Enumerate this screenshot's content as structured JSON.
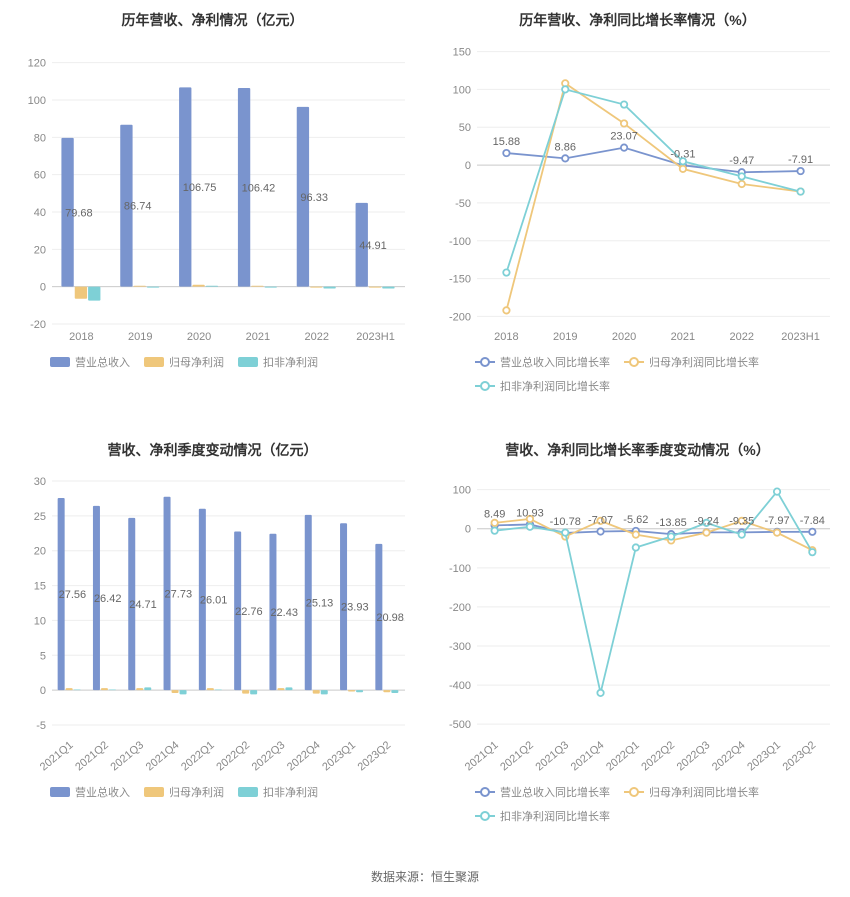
{
  "footer": "数据来源：恒生聚源",
  "colors": {
    "blue": "#7a94ce",
    "orange": "#efc77b",
    "teal": "#7ed0d6",
    "grid": "#eeeeee",
    "axis": "#cccccc",
    "text": "#888888",
    "label": "#666666"
  },
  "panels": {
    "tl": {
      "title": "历年营收、净利情况（亿元）",
      "type": "bar",
      "categories": [
        "2018",
        "2019",
        "2020",
        "2021",
        "2022",
        "2023H1"
      ],
      "yticks": [
        -20,
        0,
        20,
        40,
        60,
        80,
        100,
        120
      ],
      "ylim": [
        -20,
        130
      ],
      "series": [
        {
          "name": "营业总收入",
          "color": "#7a94ce",
          "values": [
            79.68,
            86.74,
            106.75,
            106.42,
            96.33,
            44.91
          ]
        },
        {
          "name": "归母净利润",
          "color": "#efc77b",
          "values": [
            -6.5,
            0.5,
            1.0,
            0.5,
            -0.5,
            -0.5
          ]
        },
        {
          "name": "扣非净利润",
          "color": "#7ed0d6",
          "values": [
            -7.5,
            -0.5,
            0.5,
            -0.5,
            -1.0,
            -1.0
          ]
        }
      ],
      "value_labels": [
        79.68,
        86.74,
        106.75,
        106.42,
        96.33,
        44.91
      ],
      "label_fontsize": 11,
      "title_fontsize": 14
    },
    "tr": {
      "title": "历年营收、净利同比增长率情况（%）",
      "type": "line",
      "categories": [
        "2018",
        "2019",
        "2020",
        "2021",
        "2022",
        "2023H1"
      ],
      "yticks": [
        -200,
        -150,
        -100,
        -50,
        0,
        50,
        100,
        150
      ],
      "ylim": [
        -210,
        160
      ],
      "series": [
        {
          "name": "营业总收入同比增长率",
          "color": "#7a94ce",
          "values": [
            15.88,
            8.86,
            23.07,
            -0.31,
            -9.47,
            -7.91
          ]
        },
        {
          "name": "归母净利润同比增长率",
          "color": "#efc77b",
          "values": [
            -192,
            108,
            55,
            -5,
            -25,
            -35
          ]
        },
        {
          "name": "扣非净利润同比增长率",
          "color": "#7ed0d6",
          "values": [
            -142,
            100,
            80,
            5,
            -15,
            -35
          ]
        }
      ],
      "value_labels": [
        15.88,
        8.86,
        23.07,
        -0.31,
        -9.47,
        -7.91
      ],
      "label_fontsize": 11,
      "title_fontsize": 14
    },
    "bl": {
      "title": "营收、净利季度变动情况（亿元）",
      "type": "bar",
      "categories": [
        "2021Q1",
        "2021Q2",
        "2021Q3",
        "2021Q4",
        "2022Q1",
        "2022Q2",
        "2022Q3",
        "2022Q4",
        "2023Q1",
        "2023Q2"
      ],
      "yticks": [
        -5,
        0,
        5,
        10,
        15,
        20,
        25,
        30
      ],
      "ylim": [
        -6,
        31
      ],
      "rotate_x": true,
      "series": [
        {
          "name": "营业总收入",
          "color": "#7a94ce",
          "values": [
            27.56,
            26.42,
            24.71,
            27.73,
            26.01,
            22.76,
            22.43,
            25.13,
            23.93,
            20.98
          ]
        },
        {
          "name": "归母净利润",
          "color": "#efc77b",
          "values": [
            0.3,
            0.3,
            0.3,
            -0.4,
            0.3,
            -0.5,
            0.3,
            -0.5,
            -0.2,
            -0.3
          ]
        },
        {
          "name": "扣非净利润",
          "color": "#7ed0d6",
          "values": [
            0.1,
            0.1,
            0.4,
            -0.6,
            0.1,
            -0.6,
            0.4,
            -0.6,
            -0.3,
            -0.4
          ]
        }
      ],
      "value_labels": [
        27.56,
        26.42,
        24.71,
        27.73,
        26.01,
        22.76,
        22.43,
        25.13,
        23.93,
        20.98
      ],
      "label_fontsize": 11,
      "title_fontsize": 14
    },
    "br": {
      "title": "营收、净利同比增长率季度变动情况（%）",
      "type": "line",
      "categories": [
        "2021Q1",
        "2021Q2",
        "2021Q3",
        "2021Q4",
        "2022Q1",
        "2022Q2",
        "2022Q3",
        "2022Q4",
        "2023Q1",
        "2023Q2"
      ],
      "yticks": [
        -500,
        -400,
        -300,
        -200,
        -100,
        0,
        100
      ],
      "ylim": [
        -520,
        140
      ],
      "rotate_x": true,
      "series": [
        {
          "name": "营业总收入同比增长率",
          "color": "#7a94ce",
          "values": [
            8.49,
            10.93,
            -10.78,
            -7.07,
            -5.62,
            -13.85,
            -9.24,
            -9.35,
            -7.97,
            -7.84
          ]
        },
        {
          "name": "归母净利润同比增长率",
          "color": "#efc77b",
          "values": [
            15,
            25,
            -20,
            20,
            -15,
            -30,
            -10,
            20,
            -10,
            -55
          ]
        },
        {
          "name": "扣非净利润同比增长率",
          "color": "#7ed0d6",
          "values": [
            -5,
            5,
            -10,
            -420,
            -48,
            -20,
            15,
            -15,
            95,
            -60
          ]
        }
      ],
      "value_labels": [
        8.49,
        10.93,
        -10.78,
        -7.07,
        -5.62,
        -13.85,
        -9.24,
        -9.35,
        -7.97,
        -7.84
      ],
      "label_fontsize": 11,
      "title_fontsize": 14
    }
  }
}
